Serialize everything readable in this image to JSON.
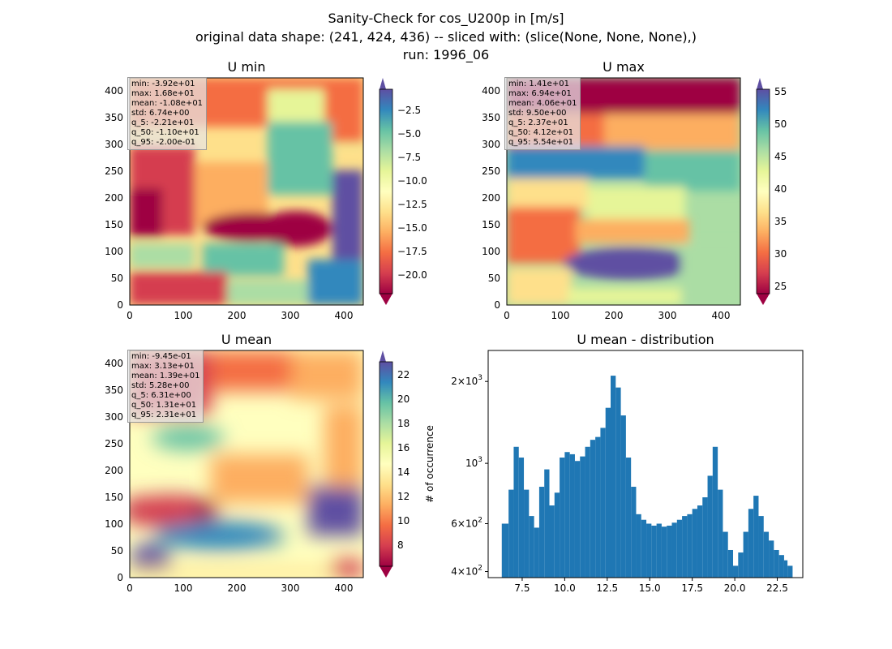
{
  "suptitle": [
    "Sanity-Check for cos_U200p in [m/s]",
    "original data shape: (241, 424, 436) -- sliced with: (slice(None, None, None),)",
    "run: 1996_06"
  ],
  "panels": {
    "umin": {
      "title": "U min",
      "xticks": [
        "0",
        "100",
        "200",
        "300",
        "400"
      ],
      "yticks": [
        "0",
        "50",
        "100",
        "150",
        "200",
        "250",
        "300",
        "350",
        "400"
      ],
      "stats": [
        "min: -3.92e+01",
        "max: 1.68e+01",
        "mean: -1.08e+01",
        "std: 6.74e+00",
        "q_5: -2.21e+01",
        "q_50: -1.10e+01",
        "q_95: -2.00e-01"
      ],
      "colorbar": {
        "range": [
          -22.1,
          -0.2
        ],
        "ticks": [
          "−2.5",
          "−5.0",
          "−7.5",
          "−10.0",
          "−12.5",
          "−15.0",
          "−17.5",
          "−20.0"
        ],
        "tick_values": [
          -2.5,
          -5.0,
          -7.5,
          -10.0,
          -12.5,
          -15.0,
          -17.5,
          -20.0
        ]
      }
    },
    "umax": {
      "title": "U max",
      "xticks": [
        "0",
        "100",
        "200",
        "300",
        "400"
      ],
      "yticks": [
        "0",
        "50",
        "100",
        "150",
        "200",
        "250",
        "300",
        "350",
        "400"
      ],
      "stats": [
        "min: 1.41e+01",
        "max: 6.94e+01",
        "mean: 4.06e+01",
        "std: 9.50e+00",
        "q_5: 2.37e+01",
        "q_50: 4.12e+01",
        "q_95: 5.54e+01"
      ],
      "colorbar": {
        "range": [
          23.7,
          55.4
        ],
        "ticks": [
          "55",
          "50",
          "45",
          "40",
          "35",
          "30",
          "25"
        ],
        "tick_values": [
          55,
          50,
          45,
          40,
          35,
          30,
          25
        ]
      }
    },
    "umean": {
      "title": "U mean",
      "xticks": [
        "0",
        "100",
        "200",
        "300",
        "400"
      ],
      "yticks": [
        "0",
        "50",
        "100",
        "150",
        "200",
        "250",
        "300",
        "350",
        "400"
      ],
      "stats": [
        "min: -9.45e-01",
        "max: 3.13e+01",
        "mean: 1.39e+01",
        "std: 5.28e+00",
        "q_5: 6.31e+00",
        "q_50: 1.31e+01",
        "q_95: 2.31e+01"
      ],
      "colorbar": {
        "range": [
          6.31,
          23.1
        ],
        "ticks": [
          "22",
          "20",
          "18",
          "16",
          "14",
          "12",
          "10",
          "8"
        ],
        "tick_values": [
          22,
          20,
          18,
          16,
          14,
          12,
          10,
          8
        ]
      }
    },
    "hist": {
      "title": "U mean - distribution",
      "ylabel": "# of occurrence",
      "xticks": [
        "7.5",
        "10.0",
        "12.5",
        "15.0",
        "17.5",
        "20.0",
        "22.5"
      ],
      "ytick_labels": [
        {
          "base": "4",
          "mult": "×",
          "ten": "10",
          "exp": "2",
          "value": 400
        },
        {
          "base": "6",
          "mult": "×",
          "ten": "10",
          "exp": "2",
          "value": 600
        },
        {
          "base": "",
          "mult": "",
          "ten": "10",
          "exp": "3",
          "value": 1000
        },
        {
          "base": "2",
          "mult": "×",
          "ten": "10",
          "exp": "3",
          "value": 2000
        }
      ]
    }
  },
  "colormap": "Spectral",
  "chart_data": {
    "type": "bar",
    "title": "U mean - distribution",
    "xlabel": "",
    "ylabel": "# of occurrence",
    "yscale": "log",
    "color": "#1f77b4",
    "xlim": [
      5.5,
      24.0
    ],
    "ylim": [
      380,
      2600
    ],
    "bins_x": [
      6.3,
      6.7,
      7.0,
      7.3,
      7.6,
      7.9,
      8.2,
      8.5,
      8.8,
      9.1,
      9.4,
      9.7,
      10.0,
      10.3,
      10.6,
      10.9,
      11.2,
      11.5,
      11.8,
      12.1,
      12.4,
      12.7,
      13.0,
      13.3,
      13.6,
      13.9,
      14.2,
      14.5,
      14.8,
      15.1,
      15.4,
      15.7,
      16.0,
      16.3,
      16.6,
      16.9,
      17.2,
      17.5,
      17.8,
      18.1,
      18.4,
      18.7,
      19.0,
      19.3,
      19.6,
      19.9,
      20.2,
      20.5,
      20.8,
      21.1,
      21.4,
      21.7,
      22.0,
      22.3,
      22.6,
      22.9,
      23.1
    ],
    "bins_y": [
      600,
      800,
      1150,
      1050,
      800,
      640,
      580,
      820,
      950,
      700,
      780,
      1050,
      1100,
      1080,
      1020,
      1060,
      1150,
      1220,
      1250,
      1350,
      1600,
      2100,
      1900,
      1500,
      1050,
      820,
      650,
      620,
      600,
      590,
      600,
      585,
      590,
      605,
      620,
      640,
      650,
      680,
      700,
      750,
      900,
      1150,
      800,
      560,
      480,
      420,
      470,
      560,
      680,
      760,
      640,
      560,
      520,
      480,
      460,
      440,
      420
    ]
  }
}
